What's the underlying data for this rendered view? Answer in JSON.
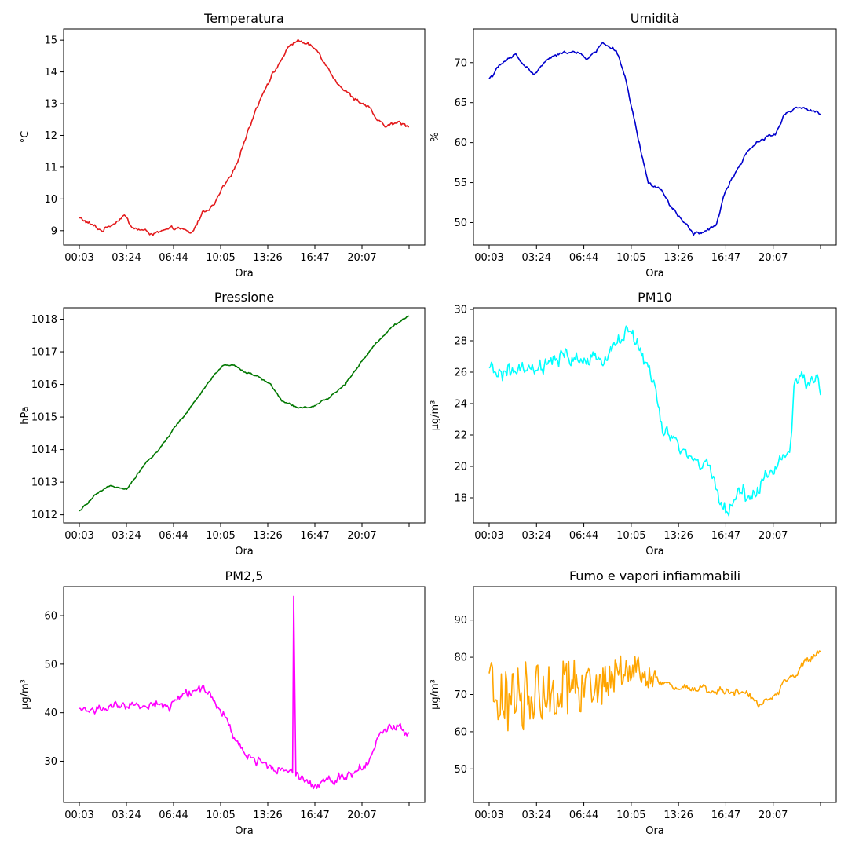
{
  "chart_data": [
    {
      "type": "line",
      "title": "Temperatura",
      "xlabel": "Ora",
      "ylabel": "°C",
      "color": "#e31a1c",
      "xticks": [
        "00:03",
        "03:24",
        "06:44",
        "10:05",
        "13:26",
        "16:47",
        "20:07",
        ""
      ],
      "yticks": [
        9,
        10,
        11,
        12,
        13,
        14,
        15
      ],
      "ylim": [
        8.55,
        15.35
      ],
      "anchors": [
        [
          0,
          9.4
        ],
        [
          3,
          9.2
        ],
        [
          6,
          9.0
        ],
        [
          10,
          9.3
        ],
        [
          12,
          9.5
        ],
        [
          14,
          9.1
        ],
        [
          20,
          8.9
        ],
        [
          26,
          9.1
        ],
        [
          30,
          8.9
        ],
        [
          33,
          9.6
        ],
        [
          36,
          9.8
        ],
        [
          38,
          10.3
        ],
        [
          41,
          10.8
        ],
        [
          44,
          11.8
        ],
        [
          47,
          12.8
        ],
        [
          50,
          13.6
        ],
        [
          53,
          14.2
        ],
        [
          56,
          14.8
        ],
        [
          58,
          15.0
        ],
        [
          62,
          14.8
        ],
        [
          64,
          14.6
        ],
        [
          67,
          14.0
        ],
        [
          70,
          13.5
        ],
        [
          73,
          13.2
        ],
        [
          77,
          12.9
        ],
        [
          80,
          12.4
        ],
        [
          82,
          12.3
        ],
        [
          85,
          12.4
        ],
        [
          88,
          12.3
        ]
      ],
      "noise": 0.08
    },
    {
      "type": "line",
      "title": "Umidità",
      "xlabel": "Ora",
      "ylabel": "%",
      "color": "#0000cc",
      "xticks": [
        "00:03",
        "03:24",
        "06:44",
        "10:05",
        "13:26",
        "16:47",
        "20:07",
        ""
      ],
      "yticks": [
        50,
        55,
        60,
        65,
        70
      ],
      "ylim": [
        47.2,
        74.2
      ],
      "anchors": [
        [
          0,
          68
        ],
        [
          3,
          70
        ],
        [
          6,
          71
        ],
        [
          8,
          69.5
        ],
        [
          10,
          68.5
        ],
        [
          13,
          70.5
        ],
        [
          18,
          71.5
        ],
        [
          22,
          70.5
        ],
        [
          25,
          72.5
        ],
        [
          28,
          71.5
        ],
        [
          30,
          68
        ],
        [
          33,
          60
        ],
        [
          35,
          55
        ],
        [
          38,
          54
        ],
        [
          40,
          52
        ],
        [
          43,
          50
        ],
        [
          45,
          48.5
        ],
        [
          48,
          49
        ],
        [
          50,
          49.5
        ],
        [
          52,
          54
        ],
        [
          55,
          57
        ],
        [
          57,
          59
        ],
        [
          60,
          60.5
        ],
        [
          63,
          61
        ],
        [
          65,
          63.5
        ],
        [
          68,
          64.5
        ],
        [
          71,
          64
        ],
        [
          73,
          63.5
        ]
      ],
      "noise": 0.3
    },
    {
      "type": "line",
      "title": "Pressione",
      "xlabel": "Ora",
      "ylabel": "hPa",
      "color": "#007700",
      "xticks": [
        "00:03",
        "03:24",
        "06:44",
        "10:05",
        "13:26",
        "16:47",
        "20:07",
        ""
      ],
      "yticks": [
        1012,
        1013,
        1014,
        1015,
        1016,
        1017,
        1018
      ],
      "ylim": [
        1011.75,
        1018.35
      ],
      "anchors": [
        [
          0,
          1012.1
        ],
        [
          3,
          1012.6
        ],
        [
          6,
          1012.9
        ],
        [
          9,
          1012.8
        ],
        [
          12,
          1013.5
        ],
        [
          15,
          1014.0
        ],
        [
          18,
          1014.7
        ],
        [
          21,
          1015.3
        ],
        [
          24,
          1016.0
        ],
        [
          27,
          1016.6
        ],
        [
          29,
          1016.6
        ],
        [
          31,
          1016.4
        ],
        [
          34,
          1016.2
        ],
        [
          36,
          1016.0
        ],
        [
          38,
          1015.5
        ],
        [
          41,
          1015.3
        ],
        [
          44,
          1015.3
        ],
        [
          47,
          1015.6
        ],
        [
          50,
          1016.0
        ],
        [
          53,
          1016.7
        ],
        [
          56,
          1017.3
        ],
        [
          59,
          1017.8
        ],
        [
          62,
          1018.1
        ]
      ],
      "noise": 0.04
    },
    {
      "type": "line",
      "title": "PM10",
      "xlabel": "Ora",
      "ylabel": "µg/m³",
      "color": "#00ffff",
      "xticks": [
        "00:03",
        "03:24",
        "06:44",
        "10:05",
        "13:26",
        "16:47",
        "20:07",
        ""
      ],
      "yticks": [
        18,
        20,
        22,
        24,
        26,
        28,
        30
      ],
      "ylim": [
        16.4,
        30.1
      ],
      "anchors": [
        [
          0,
          26
        ],
        [
          10,
          26
        ],
        [
          18,
          27
        ],
        [
          25,
          26.5
        ],
        [
          30,
          28.2
        ],
        [
          33,
          28.5
        ],
        [
          36,
          26.5
        ],
        [
          38,
          25
        ],
        [
          40,
          22
        ],
        [
          43,
          21.5
        ],
        [
          46,
          20.5
        ],
        [
          50,
          20
        ],
        [
          53,
          18
        ],
        [
          55,
          17
        ],
        [
          57,
          18.5
        ],
        [
          60,
          18
        ],
        [
          64,
          19.5
        ],
        [
          67,
          20.5
        ],
        [
          69,
          21
        ],
        [
          70,
          25
        ],
        [
          73,
          25.5
        ],
        [
          75,
          26
        ],
        [
          76,
          24.2
        ]
      ],
      "noise": 0.7
    },
    {
      "type": "line",
      "title": "PM2,5",
      "xlabel": "Ora",
      "ylabel": "µg/m³",
      "color": "#ff00ff",
      "xticks": [
        "00:03",
        "03:24",
        "06:44",
        "10:05",
        "13:26",
        "16:47",
        "20:07",
        ""
      ],
      "yticks": [
        30,
        40,
        50,
        60
      ],
      "ylim": [
        21.5,
        66.0
      ],
      "anchors": [
        [
          0,
          40.5
        ],
        [
          6,
          41
        ],
        [
          12,
          41
        ],
        [
          18,
          42
        ],
        [
          22,
          41
        ],
        [
          25,
          44
        ],
        [
          30,
          45
        ],
        [
          33,
          42
        ],
        [
          36,
          38
        ],
        [
          40,
          31
        ],
        [
          44,
          30
        ],
        [
          48,
          28.5
        ],
        [
          52,
          28
        ],
        [
          54,
          27
        ],
        [
          57,
          25
        ],
        [
          60,
          26
        ],
        [
          64,
          27
        ],
        [
          67,
          28
        ],
        [
          70,
          30
        ],
        [
          72,
          34
        ],
        [
          75,
          37
        ],
        [
          78,
          37
        ],
        [
          80,
          36
        ]
      ],
      "noise": 1.3,
      "spike": [
        52,
        64
      ]
    },
    {
      "type": "line",
      "title": "Fumo e vapori infiammabili",
      "xlabel": "Ora",
      "ylabel": "µg/m³",
      "color": "#ffa500",
      "xticks": [
        "00:03",
        "03:24",
        "06:44",
        "10:05",
        "13:26",
        "16:47",
        "20:07",
        ""
      ],
      "yticks": [
        50,
        60,
        70,
        80,
        90
      ],
      "ylim": [
        41.0,
        99.0
      ],
      "anchors": [
        [
          0,
          68
        ],
        [
          10,
          70
        ],
        [
          20,
          72
        ],
        [
          30,
          72
        ],
        [
          40,
          75
        ],
        [
          45,
          78
        ],
        [
          50,
          74
        ],
        [
          60,
          72
        ],
        [
          70,
          71
        ],
        [
          80,
          70
        ],
        [
          85,
          68
        ],
        [
          90,
          70
        ],
        [
          95,
          75
        ],
        [
          100,
          79
        ],
        [
          104,
          82
        ]
      ],
      "noise": 1.5,
      "jitter": 11,
      "jitter_until": 52
    }
  ]
}
